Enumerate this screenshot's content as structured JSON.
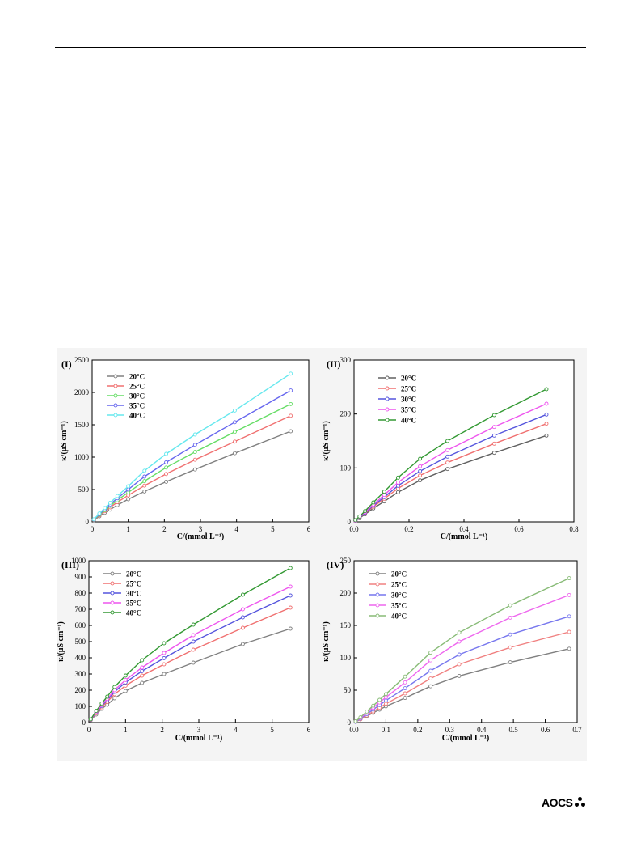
{
  "footer": {
    "brand": "AOCS"
  },
  "chart_data": [
    {
      "type": "line",
      "panel_label": "(I)",
      "xlabel": "C/(mmol L⁻¹)",
      "ylabel": "κ/(μS cm⁻¹)",
      "xlim": [
        0,
        6
      ],
      "ylim": [
        0,
        2500
      ],
      "xticks": [
        0,
        1,
        2,
        3,
        4,
        5,
        6
      ],
      "yticks": [
        0,
        500,
        1000,
        1500,
        2000,
        2500
      ],
      "legend_position": "top-left",
      "x": [
        0.05,
        0.2,
        0.35,
        0.5,
        0.7,
        1.0,
        1.45,
        2.05,
        2.85,
        3.95,
        5.5
      ],
      "series": [
        {
          "name": "20°C",
          "color": "#808080",
          "values": [
            25,
            85,
            140,
            190,
            260,
            350,
            470,
            620,
            810,
            1060,
            1400
          ]
        },
        {
          "name": "25°C",
          "color": "#f07070",
          "values": [
            30,
            100,
            165,
            225,
            305,
            410,
            560,
            740,
            960,
            1240,
            1640
          ]
        },
        {
          "name": "30°C",
          "color": "#66dd66",
          "values": [
            33,
            110,
            180,
            248,
            335,
            455,
            630,
            840,
            1080,
            1390,
            1820
          ]
        },
        {
          "name": "35°C",
          "color": "#6666ee",
          "values": [
            36,
            120,
            195,
            270,
            365,
            500,
            700,
            920,
            1190,
            1540,
            2030
          ]
        },
        {
          "name": "40°C",
          "color": "#66e8ee",
          "values": [
            40,
            130,
            215,
            295,
            400,
            550,
            790,
            1050,
            1350,
            1720,
            2290
          ]
        }
      ]
    },
    {
      "type": "line",
      "panel_label": "(II)",
      "xlabel": "C/(mmol L⁻¹)",
      "ylabel": "κ/(μS cm⁻¹)",
      "xlim": [
        0,
        0.8
      ],
      "ylim": [
        0,
        300
      ],
      "xticks": [
        0.0,
        0.2,
        0.4,
        0.6,
        0.8
      ],
      "yticks": [
        0,
        100,
        200,
        300
      ],
      "legend_position": "top-left",
      "x": [
        0.005,
        0.02,
        0.04,
        0.07,
        0.11,
        0.16,
        0.24,
        0.34,
        0.51,
        0.7
      ],
      "series": [
        {
          "name": "20°C",
          "color": "#606060",
          "values": [
            2,
            7,
            14,
            25,
            38,
            55,
            77,
            98,
            128,
            160
          ]
        },
        {
          "name": "25°C",
          "color": "#f07070",
          "values": [
            2,
            8,
            16,
            28,
            43,
            62,
            86,
            110,
            145,
            182
          ]
        },
        {
          "name": "30°C",
          "color": "#5555dd",
          "values": [
            2,
            8,
            17,
            30,
            46,
            67,
            94,
            121,
            160,
            199
          ]
        },
        {
          "name": "35°C",
          "color": "#ee55ee",
          "values": [
            2,
            9,
            18,
            32,
            50,
            73,
            103,
            133,
            176,
            219
          ]
        },
        {
          "name": "40°C",
          "color": "#339933",
          "values": [
            3,
            10,
            20,
            36,
            56,
            82,
            117,
            150,
            198,
            246
          ]
        }
      ]
    },
    {
      "type": "line",
      "panel_label": "(III)",
      "xlabel": "C/(mmol L⁻¹)",
      "ylabel": "κ/(μS cm⁻¹)",
      "xlim": [
        0,
        6
      ],
      "ylim": [
        0,
        1000
      ],
      "xticks": [
        0,
        1,
        2,
        3,
        4,
        5,
        6
      ],
      "yticks": [
        0,
        100,
        200,
        300,
        400,
        500,
        600,
        700,
        800,
        900,
        1000
      ],
      "legend_position": "top-left",
      "x": [
        0.05,
        0.2,
        0.35,
        0.5,
        0.7,
        1.0,
        1.45,
        2.05,
        2.85,
        4.2,
        5.5
      ],
      "series": [
        {
          "name": "20°C",
          "color": "#808080",
          "values": [
            15,
            50,
            85,
            110,
            150,
            195,
            245,
            300,
            370,
            485,
            580
          ]
        },
        {
          "name": "25°C",
          "color": "#f07070",
          "values": [
            17,
            58,
            95,
            128,
            175,
            228,
            290,
            360,
            450,
            585,
            710
          ]
        },
        {
          "name": "30°C",
          "color": "#5555dd",
          "values": [
            18,
            63,
            103,
            138,
            190,
            248,
            318,
            398,
            500,
            650,
            785
          ]
        },
        {
          "name": "35°C",
          "color": "#ee55ee",
          "values": [
            19,
            66,
            108,
            146,
            200,
            263,
            340,
            430,
            540,
            700,
            840
          ]
        },
        {
          "name": "40°C",
          "color": "#339933",
          "values": [
            20,
            72,
            118,
            160,
            220,
            290,
            385,
            490,
            605,
            790,
            955
          ]
        }
      ]
    },
    {
      "type": "line",
      "panel_label": "(IV)",
      "xlabel": "C/(mmol L⁻¹)",
      "ylabel": "κ/(μS cm⁻¹)",
      "xlim": [
        0,
        0.7
      ],
      "ylim": [
        0,
        250
      ],
      "xticks": [
        0.0,
        0.1,
        0.2,
        0.3,
        0.4,
        0.5,
        0.6,
        0.7
      ],
      "yticks": [
        0,
        50,
        100,
        150,
        200,
        250
      ],
      "legend_position": "top-left",
      "x": [
        0.005,
        0.02,
        0.04,
        0.06,
        0.08,
        0.1,
        0.16,
        0.24,
        0.33,
        0.49,
        0.675
      ],
      "series": [
        {
          "name": "20°C",
          "color": "#808080",
          "values": [
            1,
            5,
            10,
            15,
            20,
            25,
            38,
            56,
            72,
            93,
            114
          ]
        },
        {
          "name": "25°C",
          "color": "#f08080",
          "values": [
            1,
            5,
            11,
            17,
            23,
            29,
            45,
            68,
            90,
            116,
            140
          ]
        },
        {
          "name": "30°C",
          "color": "#7777ee",
          "values": [
            1,
            6,
            13,
            20,
            27,
            34,
            53,
            80,
            105,
            136,
            164
          ]
        },
        {
          "name": "35°C",
          "color": "#ee66ee",
          "values": [
            2,
            7,
            15,
            23,
            31,
            39,
            62,
            96,
            125,
            162,
            197
          ]
        },
        {
          "name": "40°C",
          "color": "#88bb77",
          "values": [
            2,
            8,
            17,
            26,
            35,
            44,
            71,
            108,
            139,
            181,
            223
          ]
        }
      ]
    }
  ]
}
